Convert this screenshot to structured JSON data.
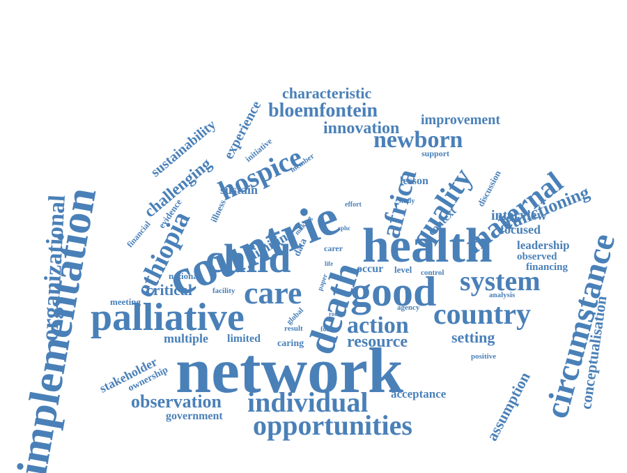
{
  "color": "#4a80b8",
  "words": [
    "implementation",
    "network",
    "health",
    "countrie",
    "good",
    "child",
    "death",
    "palliative",
    "care",
    "system",
    "country",
    "individual",
    "opportunities",
    "circumstance",
    "organizational",
    "ethiopia",
    "hospice",
    "maternal",
    "quality",
    "africa",
    "newborn",
    "action",
    "resource",
    "observation",
    "bloemfontein",
    "innovation",
    "characteristic",
    "improvement",
    "functioning",
    "interview",
    "focused",
    "leadership",
    "observed",
    "financing",
    "challenging",
    "sustainability",
    "experience",
    "conceptualisation",
    "assumption",
    "setting",
    "acceptance",
    "government",
    "multiple",
    "limited",
    "caring",
    "stakeholder",
    "ownership",
    "critical",
    "national",
    "meeting",
    "sustain",
    "limiting",
    "illness",
    "evidence",
    "financial",
    "initiative",
    "member",
    "lesson",
    "context",
    "discussion",
    "support",
    "study",
    "effort",
    "cphc",
    "carer",
    "life",
    "paper",
    "facility",
    "global",
    "round",
    "focus",
    "result",
    "occur",
    "level",
    "control",
    "analysis",
    "agency",
    "positive",
    "data",
    "making"
  ]
}
